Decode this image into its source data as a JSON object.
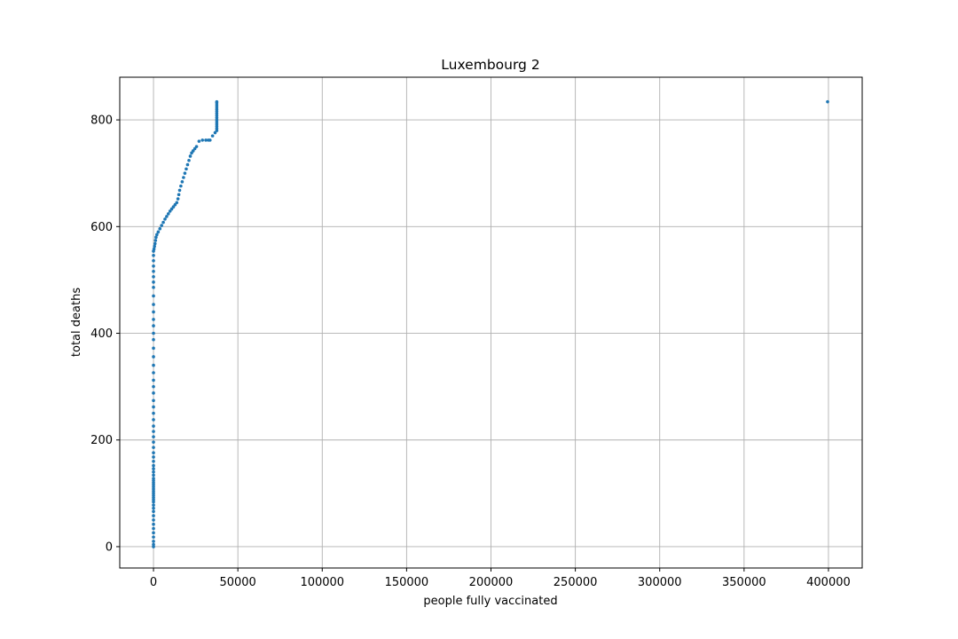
{
  "chart_data": {
    "type": "scatter",
    "title": "Luxembourg 2",
    "xlabel": "people fully vaccinated",
    "ylabel": "total deaths",
    "xlim": [
      -20000,
      420000
    ],
    "ylim": [
      -40,
      880
    ],
    "xticks": [
      0,
      50000,
      100000,
      150000,
      200000,
      250000,
      300000,
      350000,
      400000
    ],
    "yticks": [
      0,
      200,
      400,
      600,
      800
    ],
    "grid": true,
    "color": "#1f77b4",
    "points": [
      [
        0,
        0
      ],
      [
        0,
        4
      ],
      [
        0,
        10
      ],
      [
        0,
        18
      ],
      [
        0,
        26
      ],
      [
        0,
        34
      ],
      [
        0,
        42
      ],
      [
        0,
        50
      ],
      [
        0,
        58
      ],
      [
        0,
        66
      ],
      [
        0,
        72
      ],
      [
        0,
        78
      ],
      [
        0,
        84
      ],
      [
        0,
        88
      ],
      [
        0,
        92
      ],
      [
        0,
        96
      ],
      [
        0,
        100
      ],
      [
        0,
        104
      ],
      [
        0,
        108
      ],
      [
        0,
        112
      ],
      [
        0,
        116
      ],
      [
        0,
        120
      ],
      [
        0,
        124
      ],
      [
        0,
        128
      ],
      [
        0,
        134
      ],
      [
        0,
        140
      ],
      [
        0,
        146
      ],
      [
        0,
        152
      ],
      [
        0,
        160
      ],
      [
        0,
        168
      ],
      [
        0,
        176
      ],
      [
        0,
        186
      ],
      [
        0,
        196
      ],
      [
        0,
        206
      ],
      [
        0,
        216
      ],
      [
        0,
        226
      ],
      [
        0,
        238
      ],
      [
        0,
        250
      ],
      [
        0,
        262
      ],
      [
        0,
        274
      ],
      [
        0,
        288
      ],
      [
        0,
        300
      ],
      [
        0,
        312
      ],
      [
        0,
        326
      ],
      [
        0,
        340
      ],
      [
        0,
        356
      ],
      [
        0,
        372
      ],
      [
        0,
        388
      ],
      [
        0,
        400
      ],
      [
        0,
        414
      ],
      [
        0,
        426
      ],
      [
        0,
        440
      ],
      [
        0,
        454
      ],
      [
        0,
        470
      ],
      [
        0,
        486
      ],
      [
        0,
        496
      ],
      [
        0,
        506
      ],
      [
        0,
        516
      ],
      [
        0,
        526
      ],
      [
        0,
        536
      ],
      [
        0,
        546
      ],
      [
        0,
        554
      ],
      [
        300,
        558
      ],
      [
        600,
        563
      ],
      [
        900,
        568
      ],
      [
        1200,
        574
      ],
      [
        1500,
        580
      ],
      [
        2000,
        585
      ],
      [
        2800,
        590
      ],
      [
        3800,
        596
      ],
      [
        4800,
        602
      ],
      [
        5800,
        608
      ],
      [
        6800,
        614
      ],
      [
        7800,
        619
      ],
      [
        8800,
        624
      ],
      [
        9800,
        629
      ],
      [
        10800,
        633
      ],
      [
        11800,
        637
      ],
      [
        12800,
        641
      ],
      [
        13800,
        645
      ],
      [
        14500,
        652
      ],
      [
        15000,
        660
      ],
      [
        15500,
        668
      ],
      [
        16200,
        676
      ],
      [
        17000,
        684
      ],
      [
        17800,
        692
      ],
      [
        18600,
        700
      ],
      [
        19400,
        708
      ],
      [
        20200,
        716
      ],
      [
        21000,
        724
      ],
      [
        21800,
        732
      ],
      [
        22600,
        738
      ],
      [
        23500,
        742
      ],
      [
        24500,
        746
      ],
      [
        25500,
        750
      ],
      [
        27000,
        760
      ],
      [
        29000,
        762
      ],
      [
        31000,
        762
      ],
      [
        32500,
        762
      ],
      [
        33500,
        762
      ],
      [
        35000,
        770
      ],
      [
        36500,
        776
      ],
      [
        37500,
        780
      ],
      [
        37500,
        784
      ],
      [
        37500,
        788
      ],
      [
        37500,
        792
      ],
      [
        37500,
        796
      ],
      [
        37500,
        800
      ],
      [
        37500,
        804
      ],
      [
        37500,
        808
      ],
      [
        37500,
        812
      ],
      [
        37500,
        816
      ],
      [
        37500,
        820
      ],
      [
        37500,
        824
      ],
      [
        37500,
        828
      ],
      [
        37500,
        832
      ],
      [
        37500,
        834
      ],
      [
        399500,
        834
      ]
    ]
  }
}
